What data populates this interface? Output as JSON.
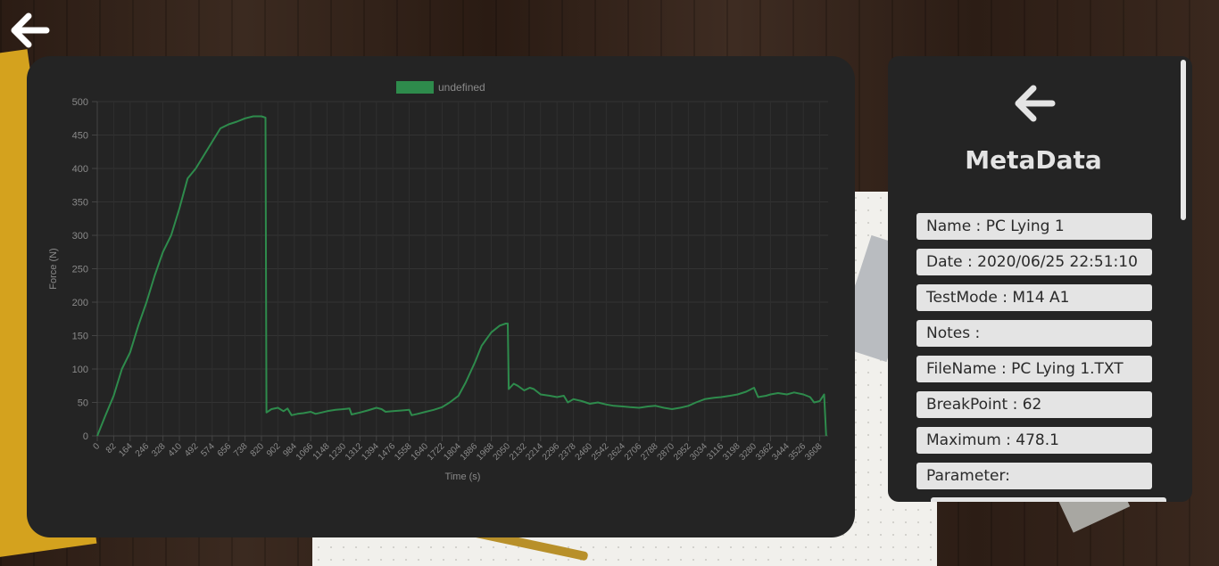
{
  "meta": {
    "title": "MetaData",
    "fields": [
      {
        "label": "Name",
        "value": "PC Lying 1"
      },
      {
        "label": "Date",
        "value": "2020/06/25 22:51:10"
      },
      {
        "label": "TestMode",
        "value": "M14 A1"
      },
      {
        "label": "Notes",
        "value": ""
      },
      {
        "label": "FileName",
        "value": "PC Lying 1.TXT"
      },
      {
        "label": "BreakPoint",
        "value": "62"
      },
      {
        "label": "Maximum",
        "value": "478.1"
      },
      {
        "label": "Parameter",
        "value": ""
      }
    ],
    "field_texts": [
      "Name : PC Lying 1",
      "Date : 2020/06/25 22:51:10",
      "TestMode : M14 A1",
      "Notes :",
      "FileName : PC Lying 1.TXT",
      "BreakPoint : 62",
      "Maximum : 478.1",
      "Parameter:"
    ]
  },
  "icons": {
    "back": "arrow-left-icon"
  },
  "colors": {
    "line": "#2e8b4c",
    "card": "#242424",
    "text": "#8a8a8a"
  },
  "chart_data": {
    "type": "line",
    "legend": [
      "undefined"
    ],
    "legend_position": "top",
    "xlabel": "Time (s)",
    "ylabel": "Force (N)",
    "ylim": [
      0,
      500
    ],
    "yticks": [
      0,
      50,
      100,
      150,
      200,
      250,
      300,
      350,
      400,
      450,
      500
    ],
    "xlim": [
      0,
      3650
    ],
    "xticks": [
      "0",
      "82",
      "164",
      "246",
      "328",
      "410",
      "492",
      "574",
      "656",
      "738",
      "820",
      "902",
      "984",
      "1066",
      "1148",
      "1230",
      "1312",
      "1394",
      "1476",
      "1558",
      "1640",
      "1722",
      "1804",
      "1886",
      "1968",
      "2050",
      "2132",
      "2214",
      "2296",
      "2378",
      "2460",
      "2542",
      "2624",
      "2706",
      "2788",
      "2870",
      "2952",
      "3034",
      "3116",
      "3198",
      "3280",
      "3362",
      "3444",
      "3526",
      "3608"
    ],
    "grid": true,
    "series": [
      {
        "name": "undefined",
        "points": [
          [
            0,
            0
          ],
          [
            40,
            30
          ],
          [
            82,
            60
          ],
          [
            123,
            100
          ],
          [
            164,
            125
          ],
          [
            205,
            165
          ],
          [
            246,
            200
          ],
          [
            287,
            240
          ],
          [
            328,
            275
          ],
          [
            369,
            300
          ],
          [
            410,
            340
          ],
          [
            451,
            385
          ],
          [
            492,
            400
          ],
          [
            533,
            420
          ],
          [
            574,
            440
          ],
          [
            615,
            460
          ],
          [
            656,
            466
          ],
          [
            697,
            470
          ],
          [
            738,
            475
          ],
          [
            779,
            478
          ],
          [
            820,
            478
          ],
          [
            840,
            476
          ],
          [
            845,
            35
          ],
          [
            870,
            40
          ],
          [
            902,
            42
          ],
          [
            930,
            37
          ],
          [
            950,
            41
          ],
          [
            970,
            31
          ],
          [
            1000,
            33
          ],
          [
            1030,
            34
          ],
          [
            1066,
            36
          ],
          [
            1090,
            33
          ],
          [
            1120,
            35
          ],
          [
            1148,
            37
          ],
          [
            1190,
            39
          ],
          [
            1230,
            40
          ],
          [
            1260,
            41
          ],
          [
            1270,
            32
          ],
          [
            1312,
            35
          ],
          [
            1350,
            38
          ],
          [
            1394,
            42
          ],
          [
            1420,
            40
          ],
          [
            1440,
            36
          ],
          [
            1476,
            37
          ],
          [
            1520,
            38
          ],
          [
            1558,
            39
          ],
          [
            1570,
            31
          ],
          [
            1600,
            33
          ],
          [
            1640,
            36
          ],
          [
            1680,
            39
          ],
          [
            1722,
            43
          ],
          [
            1760,
            50
          ],
          [
            1804,
            60
          ],
          [
            1840,
            80
          ],
          [
            1886,
            110
          ],
          [
            1920,
            135
          ],
          [
            1968,
            155
          ],
          [
            2010,
            165
          ],
          [
            2040,
            168
          ],
          [
            2050,
            168
          ],
          [
            2055,
            70
          ],
          [
            2080,
            78
          ],
          [
            2100,
            75
          ],
          [
            2132,
            68
          ],
          [
            2160,
            72
          ],
          [
            2180,
            70
          ],
          [
            2214,
            62
          ],
          [
            2260,
            60
          ],
          [
            2296,
            58
          ],
          [
            2330,
            60
          ],
          [
            2350,
            50
          ],
          [
            2378,
            55
          ],
          [
            2420,
            52
          ],
          [
            2460,
            48
          ],
          [
            2500,
            50
          ],
          [
            2542,
            47
          ],
          [
            2580,
            45
          ],
          [
            2624,
            44
          ],
          [
            2660,
            43
          ],
          [
            2706,
            42
          ],
          [
            2750,
            44
          ],
          [
            2788,
            45
          ],
          [
            2830,
            42
          ],
          [
            2870,
            40
          ],
          [
            2910,
            42
          ],
          [
            2952,
            45
          ],
          [
            2990,
            50
          ],
          [
            3034,
            55
          ],
          [
            3080,
            57
          ],
          [
            3116,
            58
          ],
          [
            3160,
            60
          ],
          [
            3198,
            62
          ],
          [
            3240,
            66
          ],
          [
            3280,
            72
          ],
          [
            3300,
            58
          ],
          [
            3340,
            60
          ],
          [
            3362,
            62
          ],
          [
            3400,
            64
          ],
          [
            3444,
            62
          ],
          [
            3480,
            65
          ],
          [
            3526,
            62
          ],
          [
            3560,
            58
          ],
          [
            3580,
            50
          ],
          [
            3608,
            52
          ],
          [
            3630,
            62
          ],
          [
            3640,
            0
          ]
        ]
      }
    ]
  }
}
